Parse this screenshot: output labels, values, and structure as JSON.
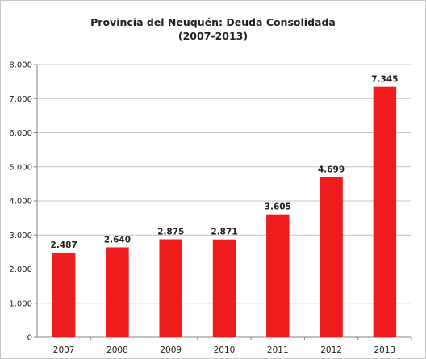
{
  "chart_data": {
    "type": "bar",
    "title": "Provincia del Neuquén:  Deuda Consolidada",
    "subtitle": "(2007-2013)",
    "categories": [
      "2007",
      "2008",
      "2009",
      "2010",
      "2011",
      "2012",
      "2013"
    ],
    "values": [
      2487,
      2640,
      2875,
      2871,
      3605,
      4699,
      7345
    ],
    "data_labels": [
      "2.487",
      "2.640",
      "2.875",
      "2.871",
      "3.605",
      "4.699",
      "7.345"
    ],
    "yticks": [
      0,
      1000,
      2000,
      3000,
      4000,
      5000,
      6000,
      7000,
      8000
    ],
    "ytick_labels": [
      "0",
      "1.000",
      "2.000",
      "3.000",
      "4.000",
      "5.000",
      "6.000",
      "7.000",
      "8.000"
    ],
    "ylim": [
      0,
      8000
    ],
    "grid": true,
    "legend": "none",
    "bar_color": "#ee1c1c"
  }
}
